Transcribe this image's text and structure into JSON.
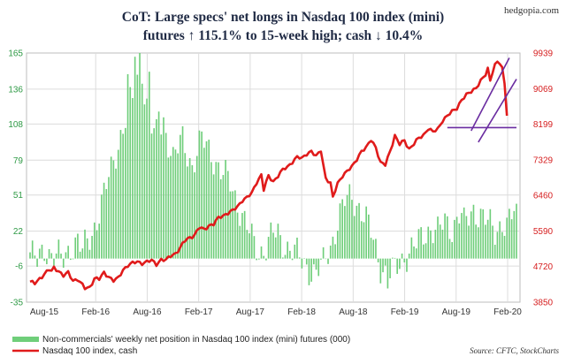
{
  "brand": "hedgopia.com",
  "title_lines": [
    "CoT: Large specs' net longs in Nasdaq 100 index (mini)",
    "futures ↑ 115.1% to 15-week high; cash ↓ 10.4%"
  ],
  "source": "Source: CFTC, StockCharts",
  "colors": {
    "bars": "#6fce7a",
    "line": "#e01b1b",
    "trend": "#6a2ca0",
    "grid": "#dcdcdc",
    "left_ticks": "#2f9a46",
    "right_ticks": "#d62021"
  },
  "chart_data": {
    "type": "bar+line",
    "title": "CoT: Large specs' net longs in Nasdaq 100 index (mini) futures ↑ 115.1% to 15-week high; cash ↓ 10.4%",
    "x_ticks": [
      "Aug-15",
      "Feb-16",
      "Aug-16",
      "Feb-17",
      "Aug-17",
      "Feb-18",
      "Aug-18",
      "Feb-19",
      "Aug-19",
      "Feb-20"
    ],
    "y_left": {
      "label": "",
      "ticks": [
        -35,
        -6,
        22,
        51,
        79,
        108,
        136,
        165
      ],
      "lim": [
        -35,
        165
      ]
    },
    "y_right": {
      "label": "",
      "ticks": [
        3850,
        4720,
        5590,
        6460,
        7329,
        8199,
        9069,
        9939
      ],
      "lim": [
        3850,
        9939
      ]
    },
    "series": [
      {
        "name": "Non-commercials' weekly net position in Nasdaq 100 index (mini) futures (000)",
        "type": "bar",
        "axis": "left",
        "anchors": [
          [
            0,
            5
          ],
          [
            3,
            -4
          ],
          [
            6,
            8
          ],
          [
            10,
            3
          ],
          [
            14,
            -2
          ],
          [
            17,
            10
          ],
          [
            20,
            15
          ],
          [
            22,
            5
          ],
          [
            26,
            20
          ],
          [
            30,
            45
          ],
          [
            34,
            70
          ],
          [
            38,
            100
          ],
          [
            42,
            125
          ],
          [
            45,
            140
          ],
          [
            47,
            155
          ],
          [
            48,
            130
          ],
          [
            50,
            115
          ],
          [
            52,
            95
          ],
          [
            56,
            110
          ],
          [
            60,
            80
          ],
          [
            64,
            95
          ],
          [
            68,
            75
          ],
          [
            72,
            95
          ],
          [
            76,
            85
          ],
          [
            80,
            70
          ],
          [
            84,
            60
          ],
          [
            87,
            45
          ],
          [
            90,
            30
          ],
          [
            93,
            15
          ],
          [
            96,
            5
          ],
          [
            99,
            10
          ],
          [
            102,
            20
          ],
          [
            105,
            15
          ],
          [
            108,
            10
          ],
          [
            111,
            5
          ],
          [
            114,
            -3
          ],
          [
            117,
            -8
          ],
          [
            120,
            -12
          ],
          [
            123,
            -5
          ],
          [
            126,
            10
          ],
          [
            129,
            30
          ],
          [
            132,
            45
          ],
          [
            135,
            50
          ],
          [
            138,
            42
          ],
          [
            141,
            30
          ],
          [
            144,
            15
          ],
          [
            147,
            -5
          ],
          [
            150,
            -15
          ],
          [
            153,
            -10
          ],
          [
            156,
            0
          ],
          [
            159,
            5
          ],
          [
            162,
            10
          ],
          [
            165,
            20
          ],
          [
            168,
            25
          ],
          [
            171,
            20
          ],
          [
            174,
            30
          ],
          [
            177,
            25
          ],
          [
            180,
            35
          ],
          [
            183,
            30
          ],
          [
            186,
            40
          ],
          [
            189,
            35
          ],
          [
            192,
            28
          ],
          [
            195,
            22
          ],
          [
            198,
            30
          ],
          [
            200,
            25
          ],
          [
            202,
            33
          ],
          [
            204,
            42
          ]
        ],
        "spikes": [
          [
            41,
            148
          ],
          [
            44,
            162
          ],
          [
            46,
            165
          ],
          [
            50,
            150
          ],
          [
            54,
            118
          ],
          [
            104,
            28
          ],
          [
            121,
            -14
          ],
          [
            150,
            -24
          ],
          [
            182,
            41
          ],
          [
            189,
            40
          ],
          [
            204,
            44
          ]
        ],
        "weeks": 205
      },
      {
        "name": "Nasdaq 100 index, cash",
        "type": "line",
        "axis": "right",
        "anchors": [
          [
            0,
            4350
          ],
          [
            2,
            4300
          ],
          [
            4,
            4420
          ],
          [
            6,
            4550
          ],
          [
            8,
            4640
          ],
          [
            9,
            4600
          ],
          [
            10,
            4680
          ],
          [
            12,
            4620
          ],
          [
            14,
            4500
          ],
          [
            16,
            4560
          ],
          [
            18,
            4380
          ],
          [
            20,
            4420
          ],
          [
            23,
            4180
          ],
          [
            25,
            4210
          ],
          [
            27,
            4440
          ],
          [
            29,
            4410
          ],
          [
            31,
            4560
          ],
          [
            33,
            4480
          ],
          [
            35,
            4380
          ],
          [
            37,
            4430
          ],
          [
            39,
            4640
          ],
          [
            41,
            4760
          ],
          [
            43,
            4800
          ],
          [
            45,
            4830
          ],
          [
            47,
            4810
          ],
          [
            49,
            4840
          ],
          [
            51,
            4860
          ],
          [
            53,
            4780
          ],
          [
            55,
            4900
          ],
          [
            57,
            4870
          ],
          [
            59,
            4980
          ],
          [
            61,
            5050
          ],
          [
            63,
            5180
          ],
          [
            65,
            5350
          ],
          [
            67,
            5430
          ],
          [
            69,
            5500
          ],
          [
            71,
            5670
          ],
          [
            73,
            5620
          ],
          [
            75,
            5730
          ],
          [
            77,
            5760
          ],
          [
            79,
            5900
          ],
          [
            81,
            5970
          ],
          [
            83,
            6040
          ],
          [
            85,
            6080
          ],
          [
            87,
            6180
          ],
          [
            89,
            6350
          ],
          [
            91,
            6410
          ],
          [
            93,
            6500
          ],
          [
            95,
            6780
          ],
          [
            97,
            6970
          ],
          [
            98,
            6600
          ],
          [
            100,
            6920
          ],
          [
            102,
            6800
          ],
          [
            104,
            6950
          ],
          [
            106,
            7080
          ],
          [
            108,
            7150
          ],
          [
            110,
            7290
          ],
          [
            112,
            7400
          ],
          [
            114,
            7350
          ],
          [
            116,
            7480
          ],
          [
            118,
            7550
          ],
          [
            120,
            7400
          ],
          [
            122,
            7560
          ],
          [
            123,
            7200
          ],
          [
            124,
            6900
          ],
          [
            126,
            6750
          ],
          [
            127,
            6400
          ],
          [
            129,
            6750
          ],
          [
            131,
            6950
          ],
          [
            133,
            7050
          ],
          [
            135,
            7150
          ],
          [
            137,
            7350
          ],
          [
            139,
            7550
          ],
          [
            141,
            7610
          ],
          [
            143,
            7820
          ],
          [
            145,
            7650
          ],
          [
            147,
            7250
          ],
          [
            149,
            7200
          ],
          [
            151,
            7550
          ],
          [
            153,
            7920
          ],
          [
            155,
            7700
          ],
          [
            157,
            7800
          ],
          [
            159,
            7600
          ],
          [
            161,
            7720
          ],
          [
            163,
            7850
          ],
          [
            165,
            7940
          ],
          [
            167,
            8100
          ],
          [
            169,
            8000
          ],
          [
            171,
            8080
          ],
          [
            173,
            8300
          ],
          [
            175,
            8400
          ],
          [
            177,
            8500
          ],
          [
            179,
            8600
          ],
          [
            181,
            8800
          ],
          [
            183,
            8900
          ],
          [
            185,
            9000
          ],
          [
            187,
            9100
          ],
          [
            189,
            9250
          ],
          [
            191,
            9400
          ],
          [
            192,
            9550
          ],
          [
            193,
            9280
          ],
          [
            194,
            9500
          ],
          [
            195,
            9650
          ],
          [
            196,
            9720
          ],
          [
            197,
            9680
          ],
          [
            198,
            9550
          ],
          [
            199,
            9200
          ],
          [
            200,
            8450
          ]
        ],
        "weeks": 201
      }
    ],
    "trend_lines": {
      "horizontal": {
        "value": 8115,
        "from_week": 175,
        "to_week": 204
      },
      "channel_upper": [
        [
          185,
          8040
        ],
        [
          201,
          9820
        ]
      ],
      "channel_lower": [
        [
          188,
          7760
        ],
        [
          204,
          9300
        ]
      ]
    },
    "legend": [
      "Non-commercials' weekly net position in Nasdaq 100 index (mini) futures (000)",
      "Nasdaq 100 index, cash"
    ]
  }
}
